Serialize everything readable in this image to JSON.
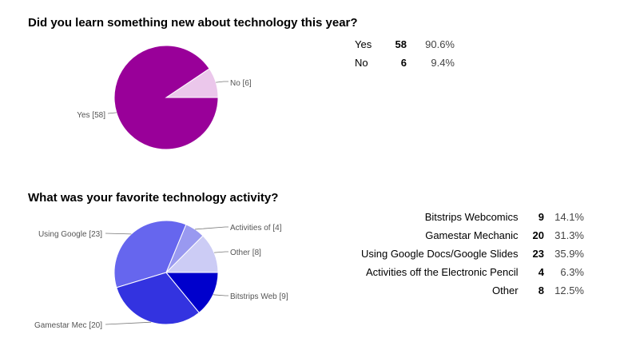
{
  "chart_data": [
    {
      "type": "pie",
      "title": "Did you learn something new about technology this year?",
      "categories": [
        "Yes",
        "No"
      ],
      "values": [
        58,
        6
      ],
      "percents": [
        "90.6%",
        "9.4%"
      ],
      "slice_labels": [
        "Yes [58]",
        "No [6]"
      ],
      "colors": [
        "#990099",
        "#ebc7eb"
      ]
    },
    {
      "type": "pie",
      "title": "What was your favorite technology activity?",
      "categories": [
        "Bitstrips Webcomics",
        "Gamestar Mechanic",
        "Using Google Docs/Google Slides",
        "Activities off the Electronic Pencil",
        "Other"
      ],
      "values": [
        9,
        20,
        23,
        4,
        8
      ],
      "percents": [
        "14.1%",
        "31.3%",
        "35.9%",
        "6.3%",
        "12.5%"
      ],
      "slice_labels": [
        "Bitstrips Web [9]",
        "Gamestar Mec [20]",
        "Using Google [23]",
        "Activities of [4]",
        "Other [8]"
      ],
      "colors": [
        "#0000cc",
        "#3333e0",
        "#6666ee",
        "#9999f0",
        "#ccccf5"
      ]
    }
  ]
}
